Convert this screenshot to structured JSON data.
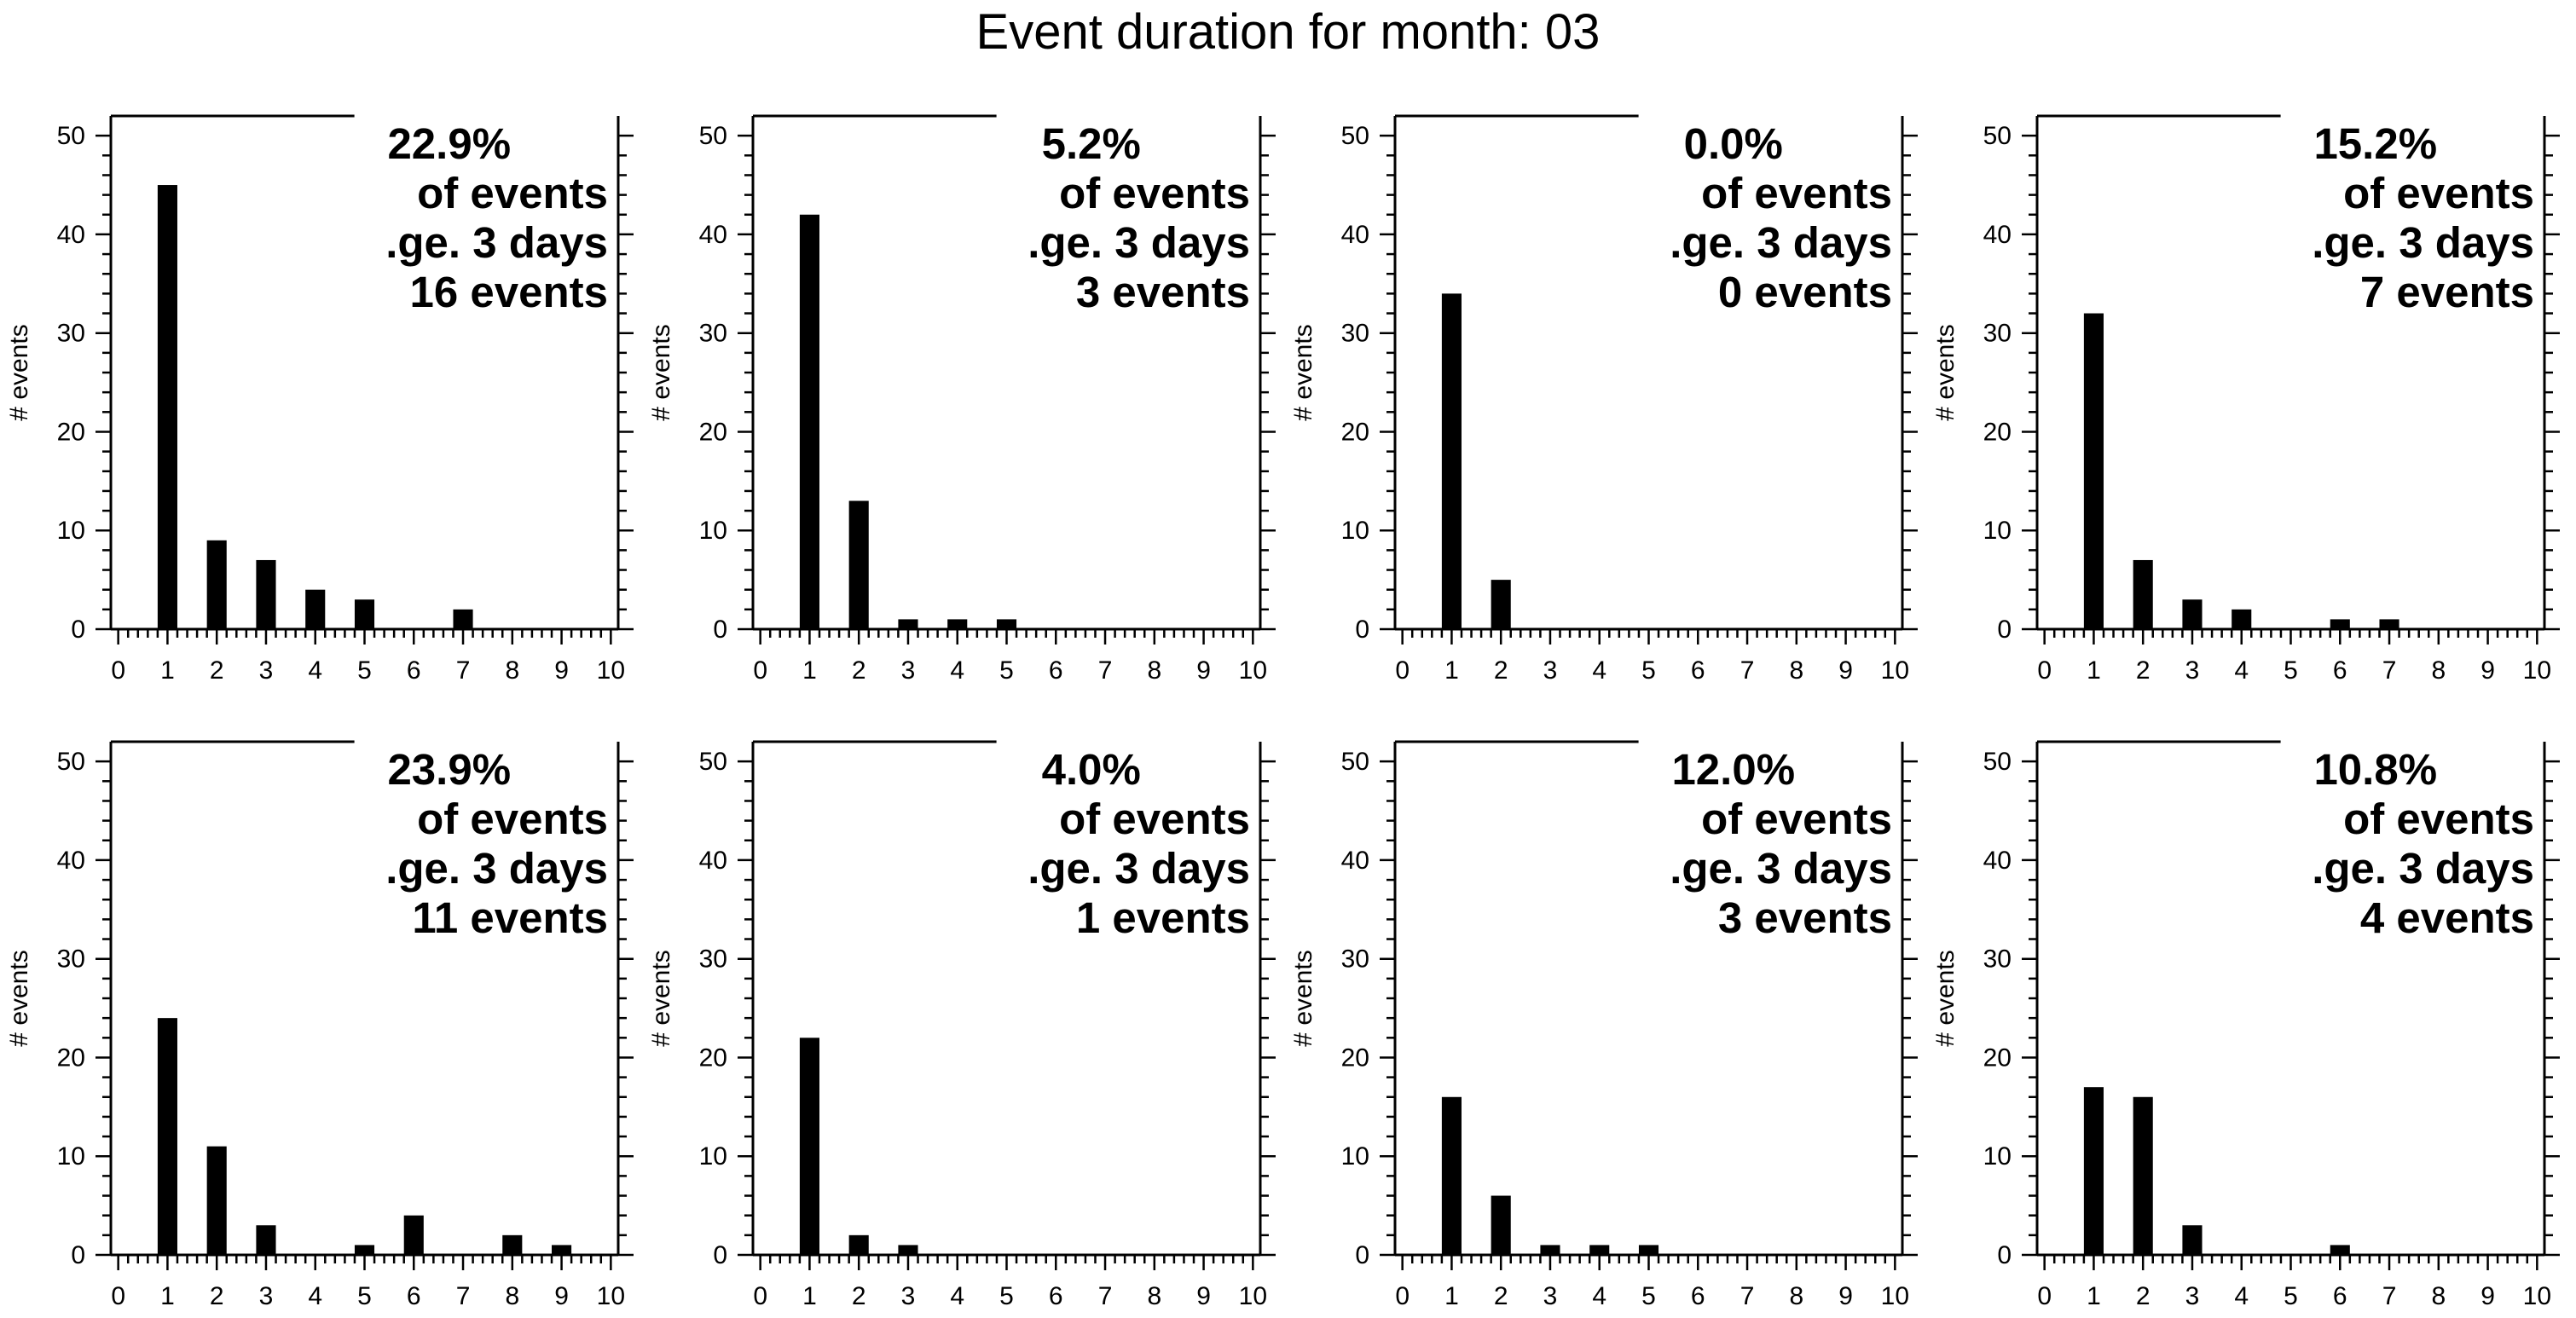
{
  "figure": {
    "title": "Event duration for month: 03"
  },
  "chart_data": [
    {
      "type": "bar",
      "ylabel": "# events",
      "xlim": [
        0,
        10
      ],
      "ylim": [
        0,
        52
      ],
      "xticks": [
        0,
        1,
        2,
        3,
        4,
        5,
        6,
        7,
        8,
        9,
        10
      ],
      "yticks": [
        0,
        10,
        20,
        30,
        40,
        50
      ],
      "x": [
        1,
        2,
        3,
        4,
        5,
        7
      ],
      "values": [
        45,
        9,
        7,
        4,
        3,
        2
      ],
      "annotation": [
        "22.9%",
        "of events",
        ".ge. 3 days",
        "16 events"
      ]
    },
    {
      "type": "bar",
      "ylabel": "# events",
      "xlim": [
        0,
        10
      ],
      "ylim": [
        0,
        52
      ],
      "xticks": [
        0,
        1,
        2,
        3,
        4,
        5,
        6,
        7,
        8,
        9,
        10
      ],
      "yticks": [
        0,
        10,
        20,
        30,
        40,
        50
      ],
      "x": [
        1,
        2,
        3,
        4,
        5
      ],
      "values": [
        42,
        13,
        1,
        1,
        1
      ],
      "annotation": [
        "5.2%",
        "of events",
        ".ge. 3 days",
        "3 events"
      ]
    },
    {
      "type": "bar",
      "ylabel": "# events",
      "xlim": [
        0,
        10
      ],
      "ylim": [
        0,
        52
      ],
      "xticks": [
        0,
        1,
        2,
        3,
        4,
        5,
        6,
        7,
        8,
        9,
        10
      ],
      "yticks": [
        0,
        10,
        20,
        30,
        40,
        50
      ],
      "x": [
        1,
        2
      ],
      "values": [
        34,
        5
      ],
      "annotation": [
        "0.0%",
        "of events",
        ".ge. 3 days",
        "0 events"
      ]
    },
    {
      "type": "bar",
      "ylabel": "# events",
      "xlim": [
        0,
        10
      ],
      "ylim": [
        0,
        52
      ],
      "xticks": [
        0,
        1,
        2,
        3,
        4,
        5,
        6,
        7,
        8,
        9,
        10
      ],
      "yticks": [
        0,
        10,
        20,
        30,
        40,
        50
      ],
      "x": [
        1,
        2,
        3,
        4,
        6,
        7
      ],
      "values": [
        32,
        7,
        3,
        2,
        1,
        1
      ],
      "annotation": [
        "15.2%",
        "of events",
        ".ge. 3 days",
        "7 events"
      ]
    },
    {
      "type": "bar",
      "ylabel": "# events",
      "xlim": [
        0,
        10
      ],
      "ylim": [
        0,
        52
      ],
      "xticks": [
        0,
        1,
        2,
        3,
        4,
        5,
        6,
        7,
        8,
        9,
        10
      ],
      "yticks": [
        0,
        10,
        20,
        30,
        40,
        50
      ],
      "x": [
        1,
        2,
        3,
        5,
        6,
        8,
        9
      ],
      "values": [
        24,
        11,
        3,
        1,
        4,
        2,
        1
      ],
      "annotation": [
        "23.9%",
        "of events",
        ".ge. 3 days",
        "11 events"
      ]
    },
    {
      "type": "bar",
      "ylabel": "# events",
      "xlim": [
        0,
        10
      ],
      "ylim": [
        0,
        52
      ],
      "xticks": [
        0,
        1,
        2,
        3,
        4,
        5,
        6,
        7,
        8,
        9,
        10
      ],
      "yticks": [
        0,
        10,
        20,
        30,
        40,
        50
      ],
      "x": [
        1,
        2,
        3
      ],
      "values": [
        22,
        2,
        1
      ],
      "annotation": [
        "4.0%",
        "of events",
        ".ge. 3 days",
        "1 events"
      ]
    },
    {
      "type": "bar",
      "ylabel": "# events",
      "xlim": [
        0,
        10
      ],
      "ylim": [
        0,
        52
      ],
      "xticks": [
        0,
        1,
        2,
        3,
        4,
        5,
        6,
        7,
        8,
        9,
        10
      ],
      "yticks": [
        0,
        10,
        20,
        30,
        40,
        50
      ],
      "x": [
        1,
        2,
        3,
        4,
        5
      ],
      "values": [
        16,
        6,
        1,
        1,
        1
      ],
      "annotation": [
        "12.0%",
        "of events",
        ".ge. 3 days",
        "3 events"
      ]
    },
    {
      "type": "bar",
      "ylabel": "# events",
      "xlim": [
        0,
        10
      ],
      "ylim": [
        0,
        52
      ],
      "xticks": [
        0,
        1,
        2,
        3,
        4,
        5,
        6,
        7,
        8,
        9,
        10
      ],
      "yticks": [
        0,
        10,
        20,
        30,
        40,
        50
      ],
      "x": [
        1,
        2,
        3,
        6
      ],
      "values": [
        17,
        16,
        3,
        1
      ],
      "annotation": [
        "10.8%",
        "of events",
        ".ge. 3 days",
        "4 events"
      ]
    }
  ]
}
